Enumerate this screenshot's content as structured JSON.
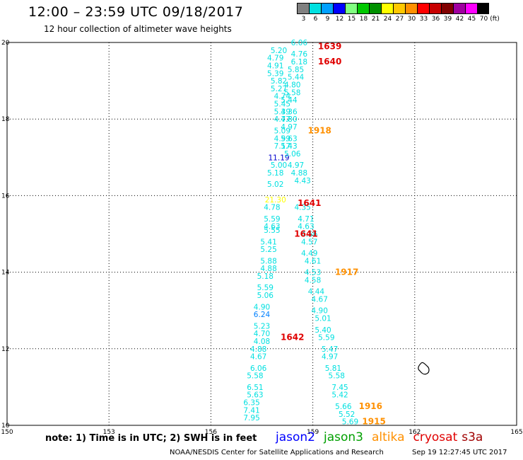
{
  "header": {
    "title": "12:00 – 23:59 UTC 09/18/2017",
    "subtitle": "12 hour collection of altimeter wave heights"
  },
  "color_scale": {
    "unit": "(ft)",
    "bins": [
      {
        "label": "3",
        "color": "#808080"
      },
      {
        "label": "6",
        "color": "#00e0e0"
      },
      {
        "label": "9",
        "color": "#00a0ff"
      },
      {
        "label": "12",
        "color": "#0000ff"
      },
      {
        "label": "15",
        "color": "#80ff80"
      },
      {
        "label": "18",
        "color": "#00c800"
      },
      {
        "label": "21",
        "color": "#009000"
      },
      {
        "label": "24",
        "color": "#ffff00"
      },
      {
        "label": "27",
        "color": "#ffc800"
      },
      {
        "label": "30",
        "color": "#ff9000"
      },
      {
        "label": "33",
        "color": "#ff0000"
      },
      {
        "label": "36",
        "color": "#c80000"
      },
      {
        "label": "39",
        "color": "#800000"
      },
      {
        "label": "42",
        "color": "#a000a0"
      },
      {
        "label": "45",
        "color": "#ff00ff"
      },
      {
        "label": "70",
        "color": "#000000"
      }
    ]
  },
  "chart_data": {
    "type": "scatter",
    "xlim": [
      150,
      165
    ],
    "ylim": [
      10,
      20
    ],
    "x_ticks": [
      "150",
      "153",
      "156",
      "159",
      "162",
      "165"
    ],
    "y_ticks": [
      "10",
      "12",
      "14",
      "16",
      "18",
      "20"
    ],
    "grid": true,
    "track_a": {
      "color": "#00e0e0",
      "points": [
        {
          "x": 158.0,
          "y": 19.8,
          "v": "5.20"
        },
        {
          "x": 157.9,
          "y": 19.6,
          "v": "4.79"
        },
        {
          "x": 157.9,
          "y": 19.4,
          "v": "4.91"
        },
        {
          "x": 157.9,
          "y": 19.2,
          "v": "5.39"
        },
        {
          "x": 158.0,
          "y": 19.0,
          "v": "5.82"
        },
        {
          "x": 158.0,
          "y": 18.8,
          "v": "5.27"
        },
        {
          "x": 158.1,
          "y": 18.6,
          "v": "4.74"
        },
        {
          "x": 158.1,
          "y": 18.4,
          "v": "5.45"
        },
        {
          "x": 158.1,
          "y": 18.2,
          "v": "5.39"
        },
        {
          "x": 158.1,
          "y": 18.0,
          "v": "4.77"
        },
        {
          "x": 158.1,
          "y": 17.7,
          "v": "5.09"
        },
        {
          "x": 158.1,
          "y": 17.5,
          "v": "4.99"
        },
        {
          "x": 158.1,
          "y": 17.3,
          "v": "7.17"
        },
        {
          "x": 158.0,
          "y": 17.0,
          "v": "11.19",
          "color": "#0000cc"
        },
        {
          "x": 158.0,
          "y": 16.8,
          "v": "5.00"
        },
        {
          "x": 157.9,
          "y": 16.6,
          "v": "5.18"
        },
        {
          "x": 157.9,
          "y": 16.3,
          "v": "5.02"
        },
        {
          "x": 157.9,
          "y": 15.9,
          "v": "21.30",
          "color": "#ffff00"
        },
        {
          "x": 157.8,
          "y": 15.7,
          "v": "4.78"
        },
        {
          "x": 157.8,
          "y": 15.4,
          "v": "5.59"
        },
        {
          "x": 157.8,
          "y": 15.2,
          "v": "4.63"
        },
        {
          "x": 157.8,
          "y": 15.1,
          "v": "5.55"
        },
        {
          "x": 157.7,
          "y": 14.8,
          "v": "5.41"
        },
        {
          "x": 157.7,
          "y": 14.6,
          "v": "5.25"
        },
        {
          "x": 157.7,
          "y": 14.3,
          "v": "5.88"
        },
        {
          "x": 157.7,
          "y": 14.1,
          "v": "4.88"
        },
        {
          "x": 157.6,
          "y": 13.9,
          "v": "5.18"
        },
        {
          "x": 157.6,
          "y": 13.6,
          "v": "5.59"
        },
        {
          "x": 157.6,
          "y": 13.4,
          "v": "5.06"
        },
        {
          "x": 157.5,
          "y": 13.1,
          "v": "4.90"
        },
        {
          "x": 157.5,
          "y": 12.9,
          "v": "6.24",
          "color": "#0080ff"
        },
        {
          "x": 157.5,
          "y": 12.6,
          "v": "5.23"
        },
        {
          "x": 157.5,
          "y": 12.4,
          "v": "4.70"
        },
        {
          "x": 157.5,
          "y": 12.2,
          "v": "4.08"
        },
        {
          "x": 157.4,
          "y": 12.0,
          "v": "4.88"
        },
        {
          "x": 157.4,
          "y": 11.8,
          "v": "4.67"
        },
        {
          "x": 157.4,
          "y": 11.5,
          "v": "6.06"
        },
        {
          "x": 157.3,
          "y": 11.3,
          "v": "5.58"
        },
        {
          "x": 157.3,
          "y": 11.0,
          "v": "6.51"
        },
        {
          "x": 157.3,
          "y": 10.8,
          "v": "5.63"
        },
        {
          "x": 157.2,
          "y": 10.6,
          "v": "6.35"
        },
        {
          "x": 157.2,
          "y": 10.4,
          "v": "7.41"
        },
        {
          "x": 157.2,
          "y": 10.2,
          "v": "7.95"
        }
      ]
    },
    "track_b": {
      "color": "#00e0e0",
      "points": [
        {
          "x": 158.6,
          "y": 20.0,
          "v": "6.06"
        },
        {
          "x": 158.6,
          "y": 19.7,
          "v": "4.76"
        },
        {
          "x": 158.6,
          "y": 19.5,
          "v": "6.18"
        },
        {
          "x": 158.5,
          "y": 19.3,
          "v": "5.85"
        },
        {
          "x": 158.5,
          "y": 19.1,
          "v": "5.44"
        },
        {
          "x": 158.4,
          "y": 18.9,
          "v": "4.80"
        },
        {
          "x": 158.4,
          "y": 18.7,
          "v": "5.58"
        },
        {
          "x": 158.3,
          "y": 18.5,
          "v": "5.44"
        },
        {
          "x": 158.3,
          "y": 18.2,
          "v": "4.36"
        },
        {
          "x": 158.3,
          "y": 18.0,
          "v": "4.80"
        },
        {
          "x": 158.3,
          "y": 17.8,
          "v": "4.97"
        },
        {
          "x": 158.3,
          "y": 17.5,
          "v": "5.63"
        },
        {
          "x": 158.3,
          "y": 17.3,
          "v": "5.43"
        },
        {
          "x": 158.4,
          "y": 17.1,
          "v": "5.06"
        },
        {
          "x": 158.5,
          "y": 16.8,
          "v": "4.97"
        },
        {
          "x": 158.6,
          "y": 16.6,
          "v": "4.88"
        },
        {
          "x": 158.7,
          "y": 16.4,
          "v": "4.43"
        },
        {
          "x": 158.7,
          "y": 15.7,
          "v": "4.35"
        },
        {
          "x": 158.8,
          "y": 15.4,
          "v": "4.71"
        },
        {
          "x": 158.8,
          "y": 15.2,
          "v": "4.63"
        },
        {
          "x": 158.9,
          "y": 15.0,
          "v": "4.56"
        },
        {
          "x": 158.9,
          "y": 14.8,
          "v": "4.57"
        },
        {
          "x": 158.9,
          "y": 14.5,
          "v": "4.49"
        },
        {
          "x": 159.0,
          "y": 14.3,
          "v": "4.61"
        },
        {
          "x": 159.0,
          "y": 14.0,
          "v": "4.53"
        },
        {
          "x": 159.0,
          "y": 13.8,
          "v": "4.58"
        },
        {
          "x": 159.1,
          "y": 13.5,
          "v": "4.44"
        },
        {
          "x": 159.2,
          "y": 13.3,
          "v": "4.67"
        },
        {
          "x": 159.2,
          "y": 13.0,
          "v": "4.90"
        },
        {
          "x": 159.3,
          "y": 12.8,
          "v": "5.01"
        },
        {
          "x": 159.3,
          "y": 12.5,
          "v": "5.40"
        },
        {
          "x": 159.4,
          "y": 12.3,
          "v": "5.59"
        },
        {
          "x": 159.5,
          "y": 12.0,
          "v": "5.47"
        },
        {
          "x": 159.5,
          "y": 11.8,
          "v": "4.97"
        },
        {
          "x": 159.6,
          "y": 11.5,
          "v": "5.81"
        },
        {
          "x": 159.7,
          "y": 11.3,
          "v": "5.58"
        },
        {
          "x": 159.8,
          "y": 11.0,
          "v": "7.45"
        },
        {
          "x": 159.8,
          "y": 10.8,
          "v": "5.42"
        },
        {
          "x": 159.9,
          "y": 10.5,
          "v": "5.66"
        },
        {
          "x": 160.0,
          "y": 10.3,
          "v": "5.52"
        },
        {
          "x": 160.1,
          "y": 10.1,
          "v": "5.69"
        }
      ]
    },
    "time_labels": [
      {
        "x": 159.5,
        "y": 19.9,
        "v": "1639",
        "color": "#e00000"
      },
      {
        "x": 159.5,
        "y": 19.5,
        "v": "1640",
        "color": "#e00000"
      },
      {
        "x": 159.2,
        "y": 17.7,
        "v": "1918",
        "color": "#ff9000"
      },
      {
        "x": 158.9,
        "y": 15.8,
        "v": "1641",
        "color": "#e00000"
      },
      {
        "x": 158.8,
        "y": 15.0,
        "v": "1641",
        "color": "#e00000"
      },
      {
        "x": 160.0,
        "y": 14.0,
        "v": "1917",
        "color": "#ff9000"
      },
      {
        "x": 158.4,
        "y": 12.3,
        "v": "1642",
        "color": "#e00000"
      },
      {
        "x": 160.7,
        "y": 10.5,
        "v": "1916",
        "color": "#ff9000"
      },
      {
        "x": 160.8,
        "y": 10.1,
        "v": "1915",
        "color": "#ff9000"
      }
    ]
  },
  "footer": {
    "note": "note: 1) Time is in UTC; 2) SWH is in feet",
    "satellites": [
      {
        "name": "jason2",
        "color": "#0000ff"
      },
      {
        "name": "jason3",
        "color": "#00a000"
      },
      {
        "name": "altika",
        "color": "#ff9000"
      },
      {
        "name": "cryosat",
        "color": "#e00000"
      },
      {
        "name": "s3a",
        "color": "#a00000"
      }
    ],
    "credit": "NOAA/NESDIS Center for Satellite Applications and Research",
    "timestamp": "Sep 19 12:27:45 UTC 2017"
  }
}
